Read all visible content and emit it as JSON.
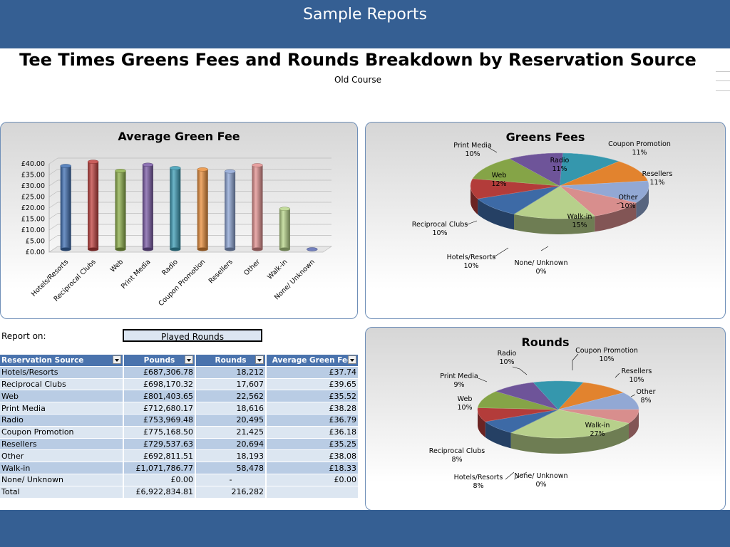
{
  "header": {
    "title": "Sample Reports"
  },
  "report": {
    "title": "Tee Times Greens Fees and Rounds Breakdown by Reservation Source",
    "subtitle": "Old Course",
    "report_on_label": "Report on:",
    "report_on_value": "Played Rounds"
  },
  "table": {
    "columns": [
      "Reservation Source",
      "Pounds",
      "Rounds",
      "Average Green Fee"
    ],
    "rows": [
      [
        "Hotels/Resorts",
        "£687,306.78",
        "18,212",
        "£37.74"
      ],
      [
        "Reciprocal Clubs",
        "£698,170.32",
        "17,607",
        "£39.65"
      ],
      [
        "Web",
        "£801,403.65",
        "22,562",
        "£35.52"
      ],
      [
        "Print Media",
        "£712,680.17",
        "18,616",
        "£38.28"
      ],
      [
        "Radio",
        "£753,969.48",
        "20,495",
        "£36.79"
      ],
      [
        "Coupon Promotion",
        "£775,168.50",
        "21,425",
        "£36.18"
      ],
      [
        "Resellers",
        "£729,537.63",
        "20,694",
        "£35.25"
      ],
      [
        "Other",
        "£692,811.51",
        "18,193",
        "£38.08"
      ],
      [
        "Walk-in",
        "£1,071,786.77",
        "58,478",
        "£18.33"
      ],
      [
        "None/ Unknown",
        "£0.00",
        "-",
        "£0.00"
      ]
    ],
    "total": [
      "Total",
      "£6,922,834.81",
      "216,282",
      ""
    ]
  },
  "chart_data": [
    {
      "type": "bar",
      "title": "Average Green Fee",
      "categories": [
        "Hotels/Resorts",
        "Reciprocal Clubs",
        "Web",
        "Print Media",
        "Radio",
        "Coupon Promotion",
        "Resellers",
        "Other",
        "Walk-in",
        "None/ Unknown"
      ],
      "values": [
        37.74,
        39.65,
        35.52,
        38.28,
        36.79,
        36.18,
        35.25,
        38.08,
        18.33,
        0
      ],
      "colors": [
        "#3f6fb3",
        "#c0403e",
        "#8db04a",
        "#7a5aa6",
        "#3c9cb5",
        "#e98e3a",
        "#8ea5d6",
        "#e2908f",
        "#b8d58a",
        "#5a6ab0"
      ],
      "ylim": [
        0,
        40
      ],
      "yticks": [
        "£0.00",
        "£5.00",
        "£10.00",
        "£15.00",
        "£20.00",
        "£25.00",
        "£30.00",
        "£35.00",
        "£40.00"
      ]
    },
    {
      "type": "pie",
      "title": "Greens Fees",
      "slices": [
        {
          "label": "Radio",
          "pct": "11%",
          "value": 11,
          "color": "#3597ad"
        },
        {
          "label": "Coupon Promotion",
          "pct": "11%",
          "value": 11,
          "color": "#e2832e"
        },
        {
          "label": "Resellers",
          "pct": "11%",
          "value": 11,
          "color": "#92a8d4"
        },
        {
          "label": "Other",
          "pct": "10%",
          "value": 10,
          "color": "#d88e8d"
        },
        {
          "label": "Walk-in",
          "pct": "15%",
          "value": 15,
          "color": "#b7d08b"
        },
        {
          "label": "None/ Unknown",
          "pct": "0%",
          "value": 0,
          "color": "#4f6aa8"
        },
        {
          "label": "Hotels/Resorts",
          "pct": "10%",
          "value": 10,
          "color": "#3d6aa6"
        },
        {
          "label": "Reciprocal Clubs",
          "pct": "10%",
          "value": 10,
          "color": "#b33c3a"
        },
        {
          "label": "Web",
          "pct": "12%",
          "value": 12,
          "color": "#85a447"
        },
        {
          "label": "Print Media",
          "pct": "10%",
          "value": 10,
          "color": "#6e5499"
        }
      ]
    },
    {
      "type": "pie",
      "title": "Rounds",
      "slices": [
        {
          "label": "Coupon Promotion",
          "pct": "10%",
          "value": 10,
          "color": "#e2832e"
        },
        {
          "label": "Resellers",
          "pct": "10%",
          "value": 10,
          "color": "#92a8d4"
        },
        {
          "label": "Other",
          "pct": "8%",
          "value": 8,
          "color": "#d88e8d"
        },
        {
          "label": "Walk-in",
          "pct": "27%",
          "value": 27,
          "color": "#b7d08b"
        },
        {
          "label": "None/ Unknown",
          "pct": "0%",
          "value": 0,
          "color": "#4f6aa8"
        },
        {
          "label": "Hotels/Resorts",
          "pct": "8%",
          "value": 8,
          "color": "#3d6aa6"
        },
        {
          "label": "Reciprocal Clubs",
          "pct": "8%",
          "value": 8,
          "color": "#b33c3a"
        },
        {
          "label": "Web",
          "pct": "10%",
          "value": 10,
          "color": "#85a447"
        },
        {
          "label": "Print Media",
          "pct": "9%",
          "value": 9,
          "color": "#6e5499"
        },
        {
          "label": "Radio",
          "pct": "10%",
          "value": 10,
          "color": "#3597ad"
        }
      ]
    }
  ]
}
